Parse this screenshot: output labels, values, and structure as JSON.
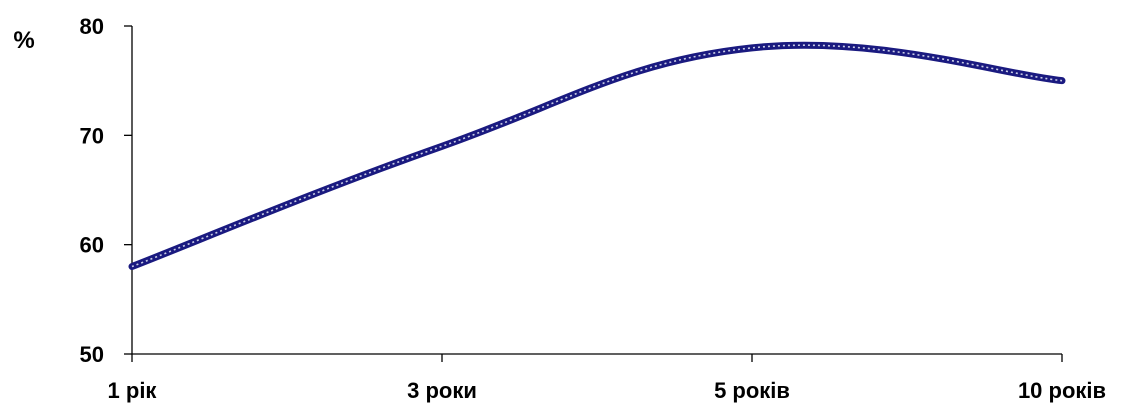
{
  "chart_data": {
    "type": "line",
    "categories": [
      "1 рік",
      "3 роки",
      "5 років",
      "10 років"
    ],
    "series": [
      {
        "values": [
          58,
          69,
          78,
          75
        ]
      }
    ],
    "ylabel": "%",
    "xlabel": "",
    "ylim": [
      50,
      80
    ],
    "yticks": [
      50,
      60,
      70,
      80
    ],
    "smooth": true,
    "grid": false,
    "colors": {
      "line": "#1a1a80",
      "line_dots": "#c9cde6",
      "axis": "#000000",
      "text": "#000000"
    }
  }
}
